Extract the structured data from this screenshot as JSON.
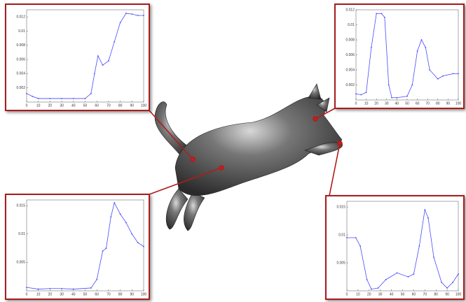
{
  "chart_data": [
    {
      "type": "line",
      "x": [
        0,
        5,
        10,
        20,
        30,
        40,
        50,
        55,
        58,
        61,
        65,
        70,
        75,
        80,
        85,
        90,
        95,
        100
      ],
      "series": [
        {
          "color": "#4a4aff",
          "values": [
            0.0012,
            0.0008,
            0.0005,
            0.0005,
            0.0005,
            0.0005,
            0.0005,
            0.0012,
            0.004,
            0.0065,
            0.0052,
            0.0058,
            0.0085,
            0.0112,
            0.0125,
            0.0124,
            0.0122,
            0.0122
          ]
        }
      ],
      "xlim": [
        0,
        100
      ],
      "xticks": [
        0,
        10,
        20,
        30,
        40,
        50,
        60,
        70,
        80,
        90,
        100
      ],
      "ylim": [
        0,
        0.013
      ],
      "yticks": [
        0.002,
        0.004,
        0.006,
        0.008,
        0.01,
        0.012
      ]
    },
    {
      "type": "line",
      "x": [
        0,
        5,
        10,
        15,
        20,
        25,
        28,
        32,
        35,
        40,
        50,
        55,
        60,
        64,
        68,
        72,
        80,
        85,
        95,
        100
      ],
      "series": [
        {
          "color": "#4a4aff",
          "values": [
            0.0008,
            0.0007,
            0.001,
            0.007,
            0.0115,
            0.0115,
            0.011,
            0.002,
            0.0003,
            0.0003,
            0.0005,
            0.002,
            0.0065,
            0.008,
            0.007,
            0.004,
            0.0028,
            0.0032,
            0.0035,
            0.0035
          ]
        }
      ],
      "xlim": [
        0,
        100
      ],
      "xticks": [
        0,
        10,
        20,
        30,
        40,
        50,
        60,
        70,
        80,
        90,
        100
      ],
      "ylim": [
        0,
        0.012
      ],
      "yticks": [
        0.002,
        0.004,
        0.006,
        0.008,
        0.01,
        0.012
      ]
    },
    {
      "type": "line",
      "x": [
        0,
        10,
        20,
        30,
        40,
        55,
        60,
        65,
        68,
        72,
        75,
        80,
        85,
        90,
        95,
        100
      ],
      "series": [
        {
          "color": "#4a4aff",
          "values": [
            0.0006,
            0.0003,
            0.0004,
            0.0004,
            0.0003,
            0.0005,
            0.002,
            0.007,
            0.0075,
            0.013,
            0.0155,
            0.0135,
            0.012,
            0.01,
            0.0085,
            0.0078
          ]
        }
      ],
      "xlim": [
        0,
        100
      ],
      "xticks": [
        0,
        10,
        20,
        30,
        40,
        50,
        60,
        70,
        80,
        90,
        100
      ],
      "ylim": [
        0,
        0.016
      ],
      "yticks": [
        0.005,
        0.01,
        0.015
      ]
    },
    {
      "type": "line",
      "x": [
        0,
        8,
        12,
        18,
        22,
        28,
        35,
        45,
        55,
        60,
        65,
        70,
        73,
        78,
        85,
        90,
        95,
        100
      ],
      "series": [
        {
          "color": "#4a4aff",
          "values": [
            0.0095,
            0.0095,
            0.008,
            0.002,
            0.0003,
            0.0005,
            0.002,
            0.0032,
            0.0025,
            0.003,
            0.008,
            0.0145,
            0.013,
            0.006,
            0.0015,
            0.0005,
            0.0015,
            0.003
          ]
        }
      ],
      "xlim": [
        0,
        100
      ],
      "xticks": [
        0,
        10,
        20,
        30,
        40,
        50,
        60,
        70,
        80,
        90,
        100
      ],
      "ylim": [
        0,
        0.016
      ],
      "yticks": [
        0.005,
        0.01,
        0.015
      ]
    }
  ]
}
